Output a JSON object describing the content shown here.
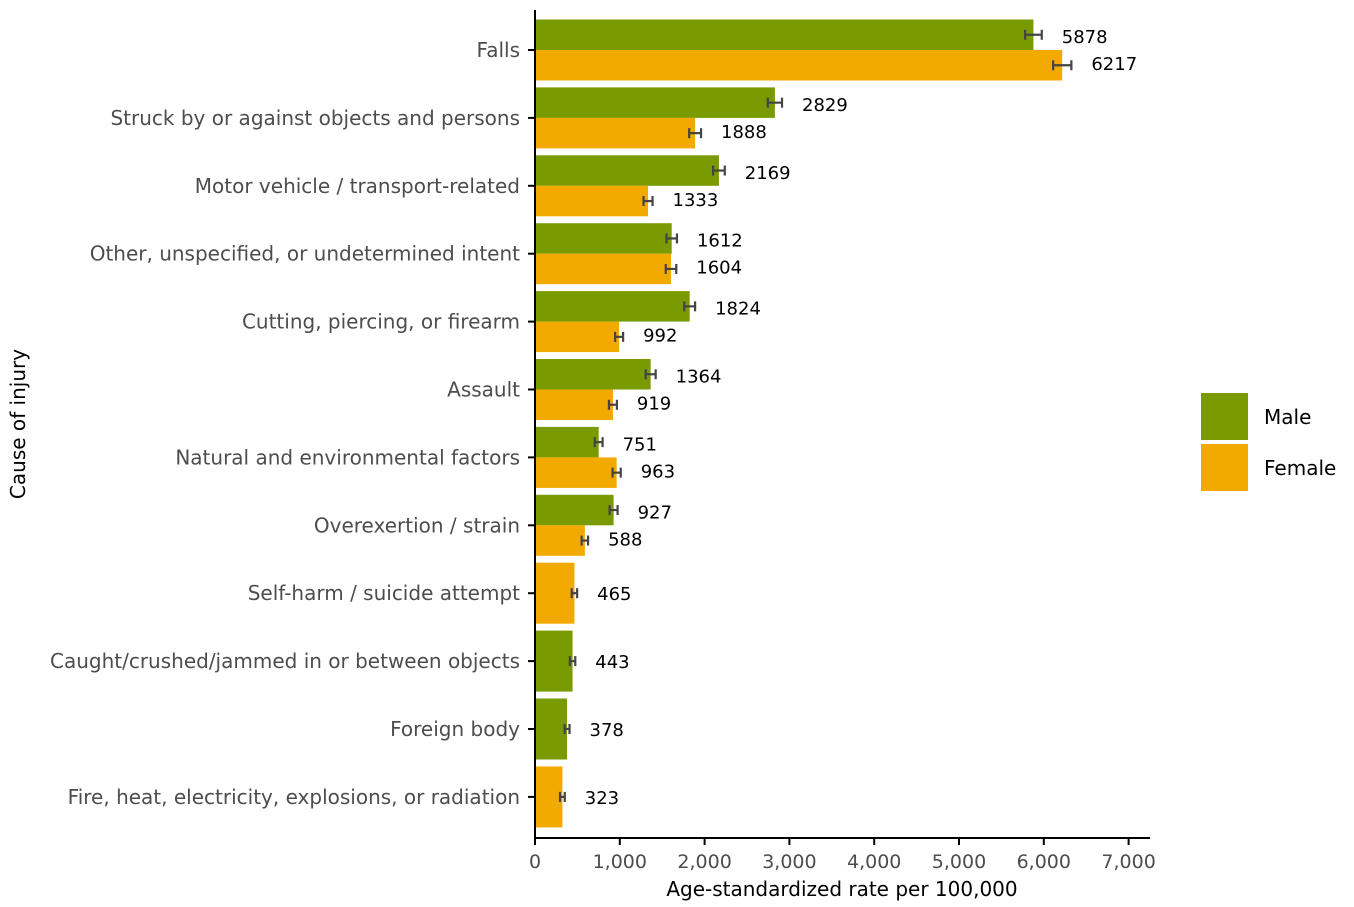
{
  "chart_data": {
    "type": "bar",
    "orientation": "horizontal",
    "xlabel": "Age-standardized rate per 100,000",
    "ylabel": "Cause of injury",
    "xlim": [
      0,
      7000
    ],
    "x_ticks": [
      0,
      1000,
      2000,
      3000,
      4000,
      5000,
      6000,
      7000
    ],
    "x_tick_labels": [
      "0",
      "1,000",
      "2,000",
      "3,000",
      "4,000",
      "5,000",
      "6,000",
      "7,000"
    ],
    "grid": false,
    "legend": {
      "placement": "right",
      "entries": [
        {
          "name": "Male",
          "color": "#7a9a01"
        },
        {
          "name": "Female",
          "color": "#f2a900"
        }
      ]
    },
    "categories": [
      {
        "label": "Falls",
        "male": 5878,
        "male_ci": [
          5780,
          5976
        ],
        "female": 6217,
        "female_ci": [
          6110,
          6325
        ]
      },
      {
        "label": "Struck by or against objects and persons",
        "male": 2829,
        "male_ci": [
          2745,
          2913
        ],
        "female": 1888,
        "female_ci": [
          1818,
          1958
        ]
      },
      {
        "label": "Motor vehicle / transport-related",
        "male": 2169,
        "male_ci": [
          2100,
          2238
        ],
        "female": 1333,
        "female_ci": [
          1280,
          1386
        ]
      },
      {
        "label": "Other, unspecified, or undetermined intent",
        "male": 1612,
        "male_ci": [
          1550,
          1674
        ],
        "female": 1604,
        "female_ci": [
          1542,
          1666
        ]
      },
      {
        "label": "Cutting, piercing, or firearm",
        "male": 1824,
        "male_ci": [
          1760,
          1888
        ],
        "female": 992,
        "female_ci": [
          945,
          1039
        ]
      },
      {
        "label": "Assault",
        "male": 1364,
        "male_ci": [
          1305,
          1423
        ],
        "female": 919,
        "female_ci": [
          872,
          966
        ]
      },
      {
        "label": "Natural and environmental factors",
        "male": 751,
        "male_ci": [
          705,
          797
        ],
        "female": 963,
        "female_ci": [
          915,
          1011
        ]
      },
      {
        "label": "Overexertion / strain",
        "male": 927,
        "male_ci": [
          880,
          974
        ],
        "female": 588,
        "female_ci": [
          550,
          626
        ]
      },
      {
        "label": "Self-harm / suicide attempt",
        "male": null,
        "male_ci": null,
        "female": 465,
        "female_ci": [
          433,
          497
        ]
      },
      {
        "label": "Caught/crushed/jammed in or between objects",
        "male": 443,
        "male_ci": [
          411,
          475
        ],
        "female": null,
        "female_ci": null
      },
      {
        "label": "Foreign body",
        "male": 378,
        "male_ci": [
          349,
          407
        ],
        "female": null,
        "female_ci": null
      },
      {
        "label": "Fire, heat, electricity, explosions, or radiation",
        "male": null,
        "male_ci": null,
        "female": 323,
        "female_ci": [
          295,
          351
        ]
      }
    ]
  }
}
